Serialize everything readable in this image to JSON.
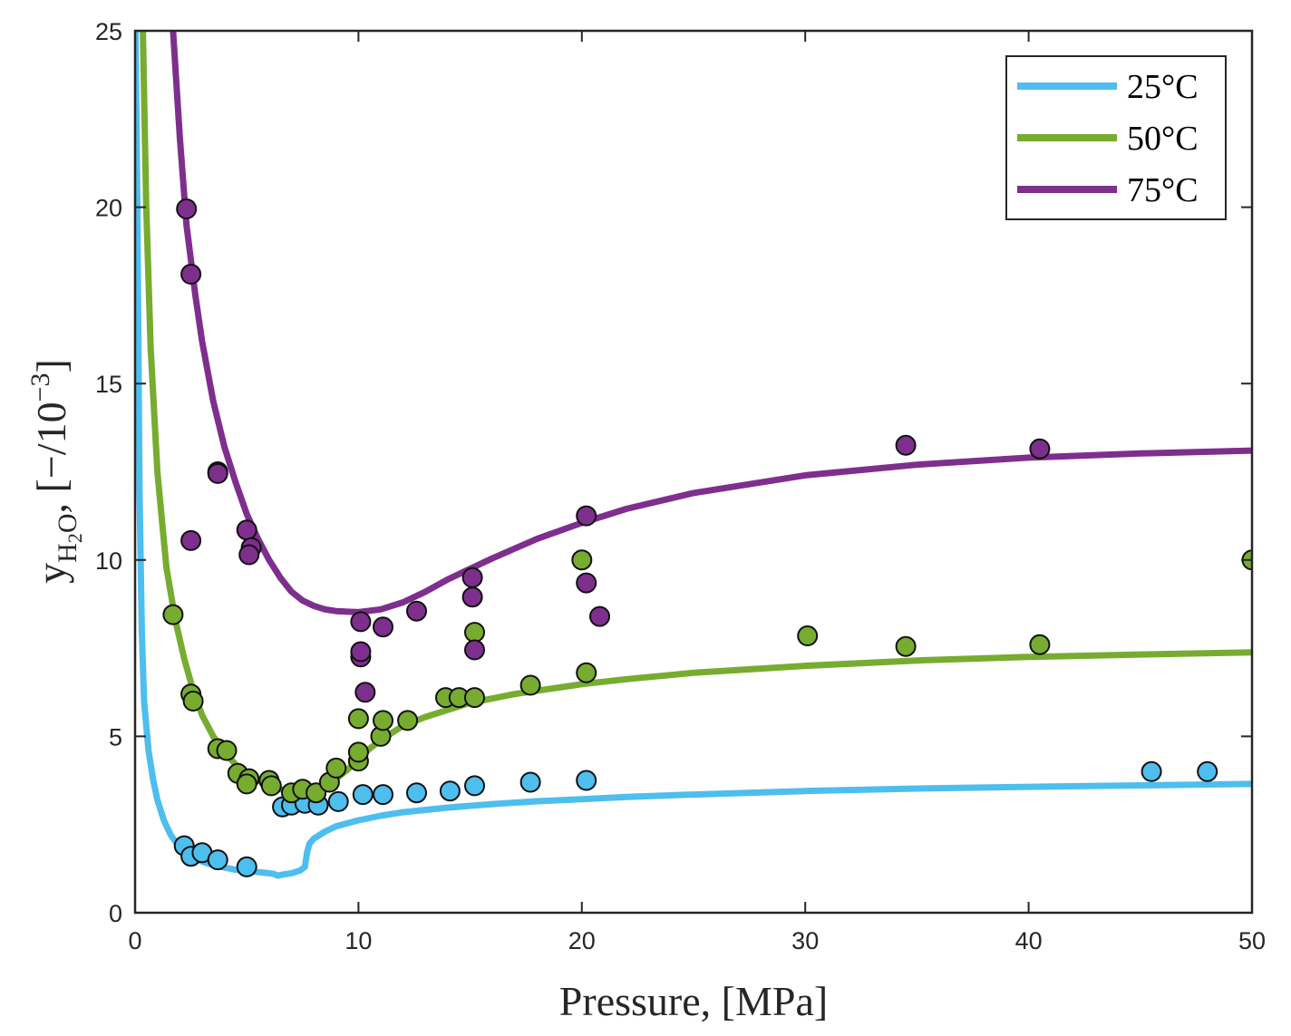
{
  "chart_data": {
    "type": "line+scatter",
    "xlabel": "Pressure,  [MPa]",
    "ylabel": {
      "symbol": "y",
      "subscript_main": "H",
      "subscript_digit": "2",
      "subscript_end": "O",
      "units_prefix": ",  [−/10",
      "units_exponent": "−3",
      "units_suffix": "]"
    },
    "xlim": [
      0,
      50
    ],
    "ylim": [
      0,
      25
    ],
    "xticks": [
      0,
      10,
      20,
      30,
      40,
      50
    ],
    "yticks": [
      0,
      5,
      10,
      15,
      20,
      25
    ],
    "grid": false,
    "legend_position": "top-right",
    "series": [
      {
        "name": "25°C",
        "color": "#4DBEEE",
        "curve": [
          [
            0.02,
            25
          ],
          [
            0.1,
            20
          ],
          [
            0.2,
            12
          ],
          [
            0.3,
            8
          ],
          [
            0.4,
            6
          ],
          [
            0.6,
            4.6
          ],
          [
            0.8,
            3.8
          ],
          [
            1.0,
            3.2
          ],
          [
            1.3,
            2.6
          ],
          [
            1.6,
            2.2
          ],
          [
            2.0,
            1.85
          ],
          [
            2.5,
            1.6
          ],
          [
            3.0,
            1.45
          ],
          [
            3.5,
            1.35
          ],
          [
            4.0,
            1.28
          ],
          [
            4.5,
            1.22
          ],
          [
            5.0,
            1.18
          ],
          [
            5.5,
            1.15
          ],
          [
            6.0,
            1.12
          ],
          [
            6.2,
            1.1
          ],
          [
            6.4,
            1.05
          ],
          [
            6.6,
            1.08
          ],
          [
            7.0,
            1.12
          ],
          [
            7.4,
            1.2
          ],
          [
            7.6,
            1.3
          ],
          [
            7.7,
            1.7
          ],
          [
            7.8,
            1.95
          ],
          [
            8.0,
            2.1
          ],
          [
            8.5,
            2.3
          ],
          [
            9.0,
            2.45
          ],
          [
            10,
            2.62
          ],
          [
            11,
            2.75
          ],
          [
            12,
            2.85
          ],
          [
            14,
            2.98
          ],
          [
            16,
            3.08
          ],
          [
            18,
            3.16
          ],
          [
            20,
            3.22
          ],
          [
            22,
            3.28
          ],
          [
            25,
            3.35
          ],
          [
            30,
            3.45
          ],
          [
            35,
            3.52
          ],
          [
            40,
            3.57
          ],
          [
            45,
            3.61
          ],
          [
            50,
            3.65
          ]
        ],
        "points": [
          [
            2.2,
            1.9
          ],
          [
            2.5,
            1.6
          ],
          [
            3.0,
            1.7
          ],
          [
            3.7,
            1.5
          ],
          [
            5.0,
            1.3
          ],
          [
            6.6,
            3.0
          ],
          [
            7.0,
            3.05
          ],
          [
            7.6,
            3.1
          ],
          [
            8.2,
            3.05
          ],
          [
            9.1,
            3.15
          ],
          [
            10.2,
            3.35
          ],
          [
            11.1,
            3.35
          ],
          [
            12.6,
            3.4
          ],
          [
            14.1,
            3.45
          ],
          [
            15.2,
            3.6
          ],
          [
            17.7,
            3.7
          ],
          [
            20.2,
            3.75
          ],
          [
            45.5,
            4.0
          ],
          [
            48.0,
            4.0
          ]
        ]
      },
      {
        "name": "50°C",
        "color": "#77AC30",
        "curve": [
          [
            0.35,
            25
          ],
          [
            0.5,
            20
          ],
          [
            0.7,
            16
          ],
          [
            1.0,
            12.5
          ],
          [
            1.4,
            9.8
          ],
          [
            1.8,
            8.3
          ],
          [
            2.2,
            7.2
          ],
          [
            2.6,
            6.3
          ],
          [
            3.0,
            5.6
          ],
          [
            3.5,
            5.0
          ],
          [
            4.0,
            4.55
          ],
          [
            4.5,
            4.2
          ],
          [
            5.0,
            3.95
          ],
          [
            5.5,
            3.75
          ],
          [
            6.0,
            3.6
          ],
          [
            6.5,
            3.5
          ],
          [
            7.0,
            3.45
          ],
          [
            7.5,
            3.45
          ],
          [
            8.0,
            3.5
          ],
          [
            8.5,
            3.62
          ],
          [
            9.0,
            3.8
          ],
          [
            9.5,
            4.05
          ],
          [
            10,
            4.35
          ],
          [
            10.5,
            4.65
          ],
          [
            11,
            4.9
          ],
          [
            12,
            5.3
          ],
          [
            13,
            5.55
          ],
          [
            14,
            5.75
          ],
          [
            15,
            5.95
          ],
          [
            17,
            6.2
          ],
          [
            20,
            6.48
          ],
          [
            22,
            6.62
          ],
          [
            25,
            6.8
          ],
          [
            30,
            7.0
          ],
          [
            35,
            7.15
          ],
          [
            40,
            7.25
          ],
          [
            45,
            7.32
          ],
          [
            50,
            7.38
          ]
        ],
        "points": [
          [
            1.7,
            8.45
          ],
          [
            2.5,
            6.2
          ],
          [
            2.6,
            6.0
          ],
          [
            3.7,
            4.65
          ],
          [
            4.1,
            4.6
          ],
          [
            4.6,
            3.95
          ],
          [
            5.1,
            3.8
          ],
          [
            5.0,
            3.65
          ],
          [
            6.0,
            3.75
          ],
          [
            6.1,
            3.6
          ],
          [
            7.0,
            3.4
          ],
          [
            7.5,
            3.5
          ],
          [
            8.1,
            3.4
          ],
          [
            8.7,
            3.7
          ],
          [
            9.0,
            4.1
          ],
          [
            10.0,
            4.3
          ],
          [
            10.0,
            4.55
          ],
          [
            10.0,
            5.5
          ],
          [
            11.0,
            5.0
          ],
          [
            11.1,
            5.45
          ],
          [
            12.2,
            5.45
          ],
          [
            13.9,
            6.1
          ],
          [
            14.5,
            6.1
          ],
          [
            15.2,
            6.1
          ],
          [
            15.2,
            7.95
          ],
          [
            17.7,
            6.45
          ],
          [
            20.2,
            6.8
          ],
          [
            20.0,
            10.0
          ],
          [
            30.1,
            7.85
          ],
          [
            34.5,
            7.55
          ],
          [
            40.5,
            7.6
          ],
          [
            50.0,
            10.0
          ]
        ]
      },
      {
        "name": "75°C",
        "color": "#7E2F8E",
        "curve": [
          [
            1.7,
            25
          ],
          [
            2.0,
            22
          ],
          [
            2.3,
            19.5
          ],
          [
            2.7,
            17.5
          ],
          [
            3.0,
            16.2
          ],
          [
            3.5,
            14.5
          ],
          [
            4.0,
            13.2
          ],
          [
            4.5,
            12.2
          ],
          [
            5.0,
            11.3
          ],
          [
            5.5,
            10.6
          ],
          [
            6.0,
            10.0
          ],
          [
            6.5,
            9.5
          ],
          [
            7.0,
            9.1
          ],
          [
            7.5,
            8.85
          ],
          [
            8.0,
            8.7
          ],
          [
            8.5,
            8.6
          ],
          [
            9.0,
            8.55
          ],
          [
            10,
            8.52
          ],
          [
            11,
            8.6
          ],
          [
            12,
            8.8
          ],
          [
            13,
            9.1
          ],
          [
            14,
            9.45
          ],
          [
            15,
            9.75
          ],
          [
            16,
            10.05
          ],
          [
            18,
            10.6
          ],
          [
            20,
            11.05
          ],
          [
            22,
            11.45
          ],
          [
            25,
            11.9
          ],
          [
            30,
            12.4
          ],
          [
            35,
            12.7
          ],
          [
            40,
            12.9
          ],
          [
            45,
            13.02
          ],
          [
            50,
            13.1
          ]
        ],
        "points": [
          [
            2.3,
            19.95
          ],
          [
            2.5,
            18.1
          ],
          [
            2.5,
            10.55
          ],
          [
            3.7,
            12.5
          ],
          [
            3.7,
            12.45
          ],
          [
            5.0,
            10.85
          ],
          [
            5.2,
            10.35
          ],
          [
            5.1,
            10.15
          ],
          [
            10.1,
            8.25
          ],
          [
            10.1,
            7.25
          ],
          [
            10.1,
            7.4
          ],
          [
            10.3,
            6.25
          ],
          [
            11.1,
            8.1
          ],
          [
            12.6,
            8.55
          ],
          [
            15.1,
            9.5
          ],
          [
            15.1,
            8.95
          ],
          [
            15.2,
            7.45
          ],
          [
            20.2,
            11.25
          ],
          [
            20.2,
            9.35
          ],
          [
            20.8,
            8.4
          ],
          [
            34.5,
            13.25
          ],
          [
            40.5,
            13.15
          ]
        ]
      }
    ]
  }
}
